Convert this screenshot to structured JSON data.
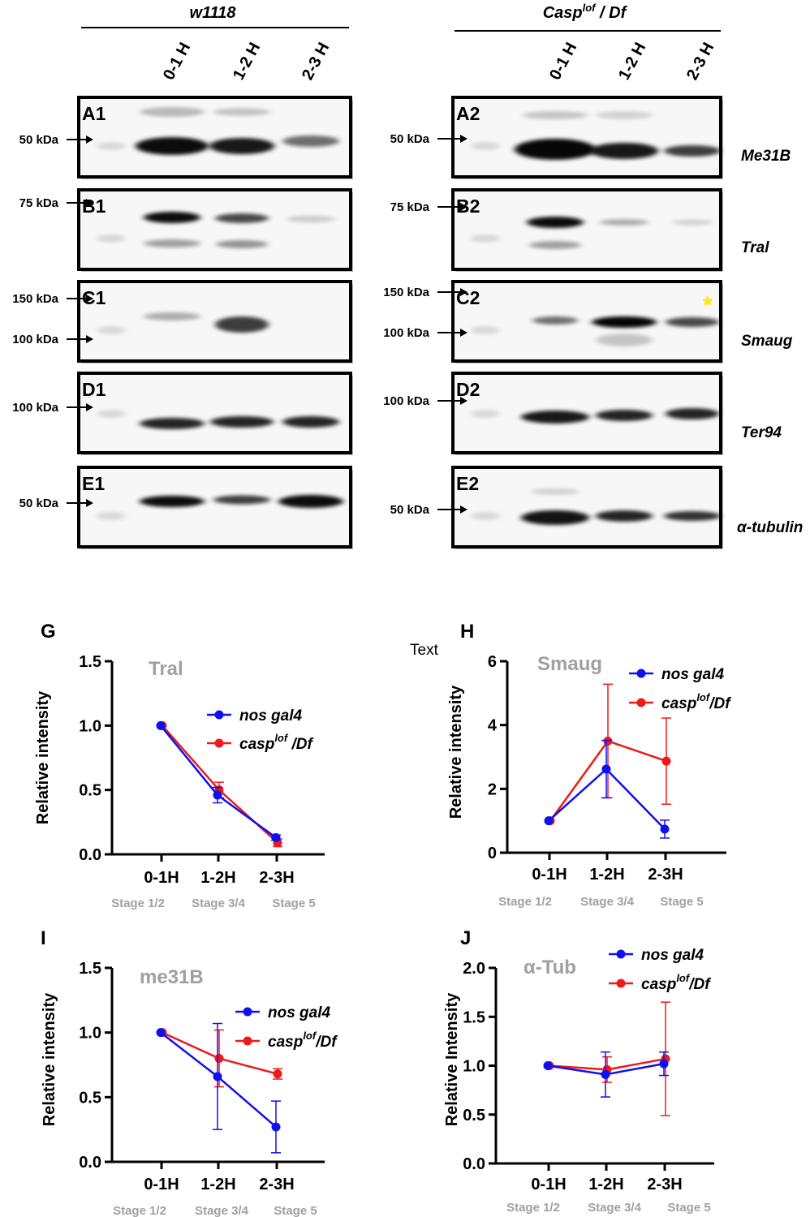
{
  "blots": {
    "left_genotype": "w1118",
    "right_genotype_main": "Casp",
    "right_genotype_sup": "lof",
    "right_genotype_tail": " / Df",
    "lanes": [
      "0-1 H",
      "1-2 H",
      "2-3 H"
    ],
    "proteins": [
      "Me31B",
      "Tral",
      "Smaug",
      "Ter94",
      "α-tubulin"
    ],
    "left_panels": [
      {
        "label": "A1",
        "markers": [
          "50 kDa"
        ]
      },
      {
        "label": "B1",
        "markers": [
          "75 kDa"
        ]
      },
      {
        "label": "C1",
        "markers": [
          "150 kDa",
          "100 kDa"
        ]
      },
      {
        "label": "D1",
        "markers": [
          "100 kDa"
        ]
      },
      {
        "label": "E1",
        "markers": [
          "50 kDa"
        ]
      }
    ],
    "right_panels": [
      {
        "label": "A2",
        "markers": [
          "50 kDa"
        ]
      },
      {
        "label": "B2",
        "markers": [
          "75 kDa"
        ]
      },
      {
        "label": "C2",
        "markers": [
          "150 kDa",
          "100 kDa"
        ]
      },
      {
        "label": "D2",
        "markers": [
          "100 kDa"
        ]
      },
      {
        "label": "E2",
        "markers": [
          "50 kDa"
        ]
      }
    ],
    "asterisk": "*",
    "asterisk_color": "#ffe600"
  },
  "stray_text": "Text",
  "colors": {
    "series1": "#1010ee",
    "series2": "#ee1a1a",
    "muted": "#a0a0a0"
  },
  "chart_data": [
    {
      "panel": "G",
      "type": "line",
      "title": "Tral",
      "ylabel": "Relative intensity",
      "categories": [
        "0-1H",
        "1-2H",
        "2-3H"
      ],
      "stages": [
        "Stage 1/2",
        "Stage 3/4",
        "Stage 5"
      ],
      "ylim": [
        0,
        1.5
      ],
      "yticks": [
        "0.0",
        "0.5",
        "1.0",
        "1.5"
      ],
      "legend": [
        {
          "main": "nos gal4",
          "sup": "",
          "tail": ""
        },
        {
          "main": "casp",
          "sup": "lof",
          "tail": " /Df"
        }
      ],
      "series": [
        {
          "values": [
            1.0,
            0.46,
            0.13
          ],
          "err": [
            0,
            0.06,
            0.02
          ]
        },
        {
          "values": [
            1.0,
            0.5,
            0.09
          ],
          "err": [
            0,
            0.06,
            0.03
          ]
        }
      ]
    },
    {
      "panel": "H",
      "type": "line",
      "title": "Smaug",
      "ylabel": "Relative intensity",
      "categories": [
        "0-1H",
        "1-2H",
        "2-3H"
      ],
      "stages": [
        "Stage 1/2",
        "Stage 3/4",
        "Stage 5"
      ],
      "ylim": [
        0,
        6
      ],
      "yticks": [
        "0",
        "2",
        "4",
        "6"
      ],
      "legend": [
        {
          "main": "nos gal4",
          "sup": "",
          "tail": ""
        },
        {
          "main": "casp",
          "sup": "lof",
          "tail": "/Df"
        }
      ],
      "series": [
        {
          "values": [
            1.0,
            2.62,
            0.74
          ],
          "err": [
            0,
            0.9,
            0.28
          ]
        },
        {
          "values": [
            1.0,
            3.5,
            2.87
          ],
          "err": [
            0,
            1.78,
            1.35
          ]
        }
      ]
    },
    {
      "panel": "I",
      "type": "line",
      "title": "me31B",
      "ylabel": "Relative intensity",
      "categories": [
        "0-1H",
        "1-2H",
        "2-3H"
      ],
      "stages": [
        "Stage 1/2",
        "Stage 3/4",
        "Stage 5"
      ],
      "ylim": [
        0,
        1.5
      ],
      "yticks": [
        "0.0",
        "0.5",
        "1.0",
        "1.5"
      ],
      "legend": [
        {
          "main": "nos gal4",
          "sup": "",
          "tail": ""
        },
        {
          "main": "casp",
          "sup": "lof",
          "tail": "/Df"
        }
      ],
      "series": [
        {
          "values": [
            1.0,
            0.66,
            0.27
          ],
          "err": [
            0,
            0.41,
            0.2
          ]
        },
        {
          "values": [
            1.0,
            0.8,
            0.68
          ],
          "err": [
            0,
            0.22,
            0.04
          ]
        }
      ]
    },
    {
      "panel": "J",
      "type": "line",
      "title": "α-Tub",
      "ylabel": "Relative Intensity",
      "categories": [
        "0-1H",
        "1-2H",
        "2-3H"
      ],
      "stages": [
        "Stage 1/2",
        "Stage 3/4",
        "Stage 5"
      ],
      "ylim": [
        0,
        2.0
      ],
      "yticks": [
        "0.0",
        "0.5",
        "1.0",
        "1.5",
        "2.0"
      ],
      "legend": [
        {
          "main": "nos gal4",
          "sup": "",
          "tail": ""
        },
        {
          "main": "casp",
          "sup": "lof",
          "tail": "/Df"
        }
      ],
      "series": [
        {
          "values": [
            1.0,
            0.91,
            1.02
          ],
          "err": [
            0,
            0.23,
            0.12
          ]
        },
        {
          "values": [
            1.0,
            0.96,
            1.07
          ],
          "err": [
            0,
            0.13,
            0.58
          ]
        }
      ]
    }
  ]
}
